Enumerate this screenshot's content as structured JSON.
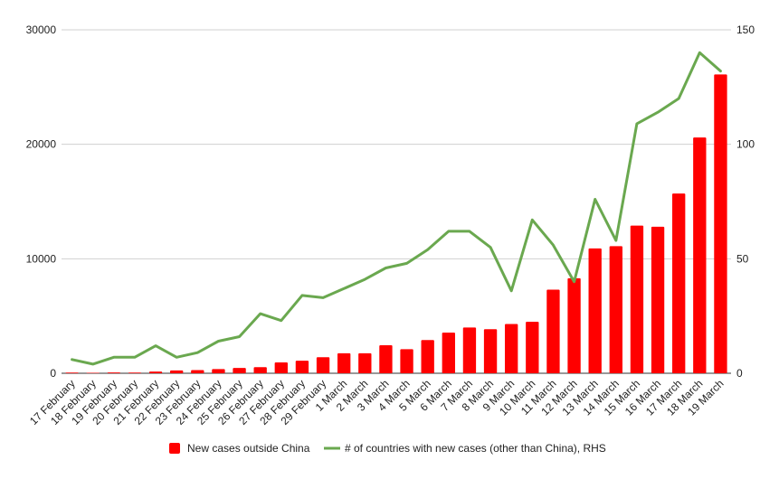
{
  "chart_data": {
    "type": "bar",
    "categories": [
      "17 February",
      "18 February",
      "19 February",
      "20 February",
      "21 February",
      "22 February",
      "23 February",
      "24 February",
      "25 February",
      "26 February",
      "27 February",
      "28 February",
      "29 February",
      "1 March",
      "2 March",
      "3 March",
      "4 March",
      "5 March",
      "6 March",
      "7 March",
      "8 March",
      "9 March",
      "10 March",
      "11 March",
      "12 March",
      "13 March",
      "14 March",
      "15 March",
      "16 March",
      "17 March",
      "18 March",
      "19 March"
    ],
    "series": [
      {
        "name": "New cases outside China",
        "type": "bar",
        "axis": "left",
        "color": "#ff0000",
        "values": [
          60,
          30,
          70,
          60,
          150,
          250,
          280,
          370,
          460,
          530,
          950,
          1100,
          1400,
          1750,
          1750,
          2450,
          2100,
          2900,
          3550,
          4000,
          3850,
          4300,
          4500,
          7300,
          8300,
          10900,
          11100,
          12900,
          12800,
          15700,
          20600,
          26100
        ]
      },
      {
        "name": "# of countries with new cases (other than China), RHS",
        "type": "line",
        "axis": "right",
        "color": "#6aa84f",
        "values": [
          6,
          4,
          7,
          7,
          12,
          7,
          9,
          14,
          16,
          26,
          23,
          34,
          33,
          37,
          41,
          46,
          48,
          54,
          62,
          62,
          55,
          36,
          67,
          56,
          40,
          76,
          58,
          109,
          114,
          120,
          140,
          132
        ]
      }
    ],
    "ylim_left": [
      0,
      30000
    ],
    "yticks_left": [
      "0",
      "10000",
      "20000",
      "30000"
    ],
    "ylim_right": [
      0,
      150
    ],
    "yticks_right": [
      "0",
      "50",
      "100",
      "150"
    ],
    "grid": true,
    "legend_position": "bottom"
  }
}
